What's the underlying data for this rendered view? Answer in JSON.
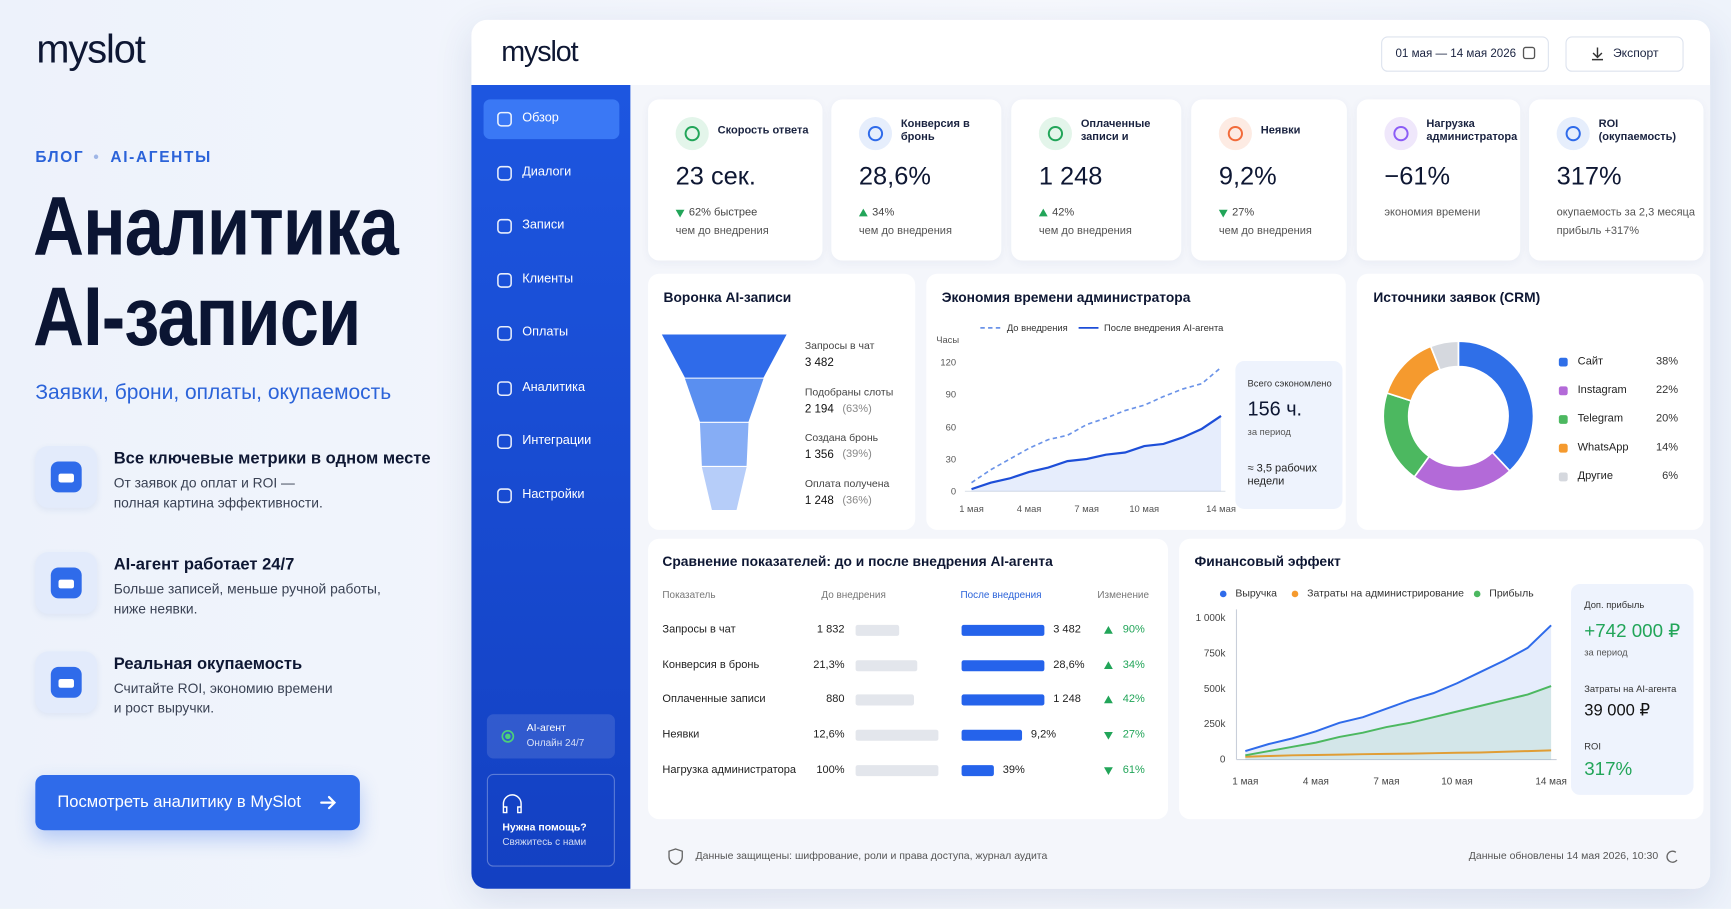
{
  "brand": "myslot",
  "breadcrumb": [
    "БЛОГ",
    "AI-АГЕНТЫ"
  ],
  "hero": {
    "title": [
      "Аналитика",
      "AI-записи"
    ],
    "subtitle": "Заявки, брони, оплаты, окупаемость"
  },
  "features": [
    {
      "title": "Все ключевые метрики в одном месте",
      "text": [
        "От заявок до оплат и ROI —",
        "полная картина эффективности."
      ]
    },
    {
      "title": "AI-агент работает 24/7",
      "text": [
        "Больше записей, меньше ручной работы,",
        "ниже неявки."
      ]
    },
    {
      "title": "Реальная окупаемость",
      "text": [
        "Считайте ROI, экономию времени",
        "и рост выручки."
      ]
    }
  ],
  "cta": "Посмотреть аналитику в MySlot",
  "dashboard": {
    "logo": "myslot",
    "date_range": "01 мая — 14 мая 2026",
    "export": "Экспорт",
    "nav": [
      "Обзор",
      "Диалоги",
      "Записи",
      "Клиенты",
      "Оплаты",
      "Аналитика",
      "Интеграции",
      "Настройки"
    ],
    "agent": {
      "title": "AI-агент",
      "status": "Онлайн 24/7"
    },
    "help": {
      "title": "Нужна помощь?",
      "text": "Свяжитесь с нами"
    },
    "kpis": [
      {
        "label": "Скорость ответа",
        "value": "23 сек.",
        "delta": "62% быстрее",
        "trend": "down",
        "note": "чем до внедрения"
      },
      {
        "label": "Конверсия в бронь",
        "value": "28,6%",
        "delta": "34%",
        "trend": "up",
        "note": "чем до внедрения"
      },
      {
        "label": "Оплаченные записи и",
        "value": "1 248",
        "delta": "42%",
        "trend": "up",
        "note": "чем до внедрения"
      },
      {
        "label": "Неявки",
        "value": "9,2%",
        "delta": "27%",
        "trend": "down",
        "note": "чем до внедрения"
      },
      {
        "label": "Нагрузка администратора",
        "value": "−61%",
        "note": "экономия времени"
      },
      {
        "label": "ROI (окупаемость)",
        "value": "317%",
        "note": "окупаемость за 2,3 месяца",
        "note2": "прибыль +317%"
      }
    ],
    "footer": {
      "security": "Данные защищены: шифрование, роли и права доступа, журнал аудита",
      "updated": "Данные обновлены 14 мая 2026, 10:30"
    }
  },
  "funnel": {
    "type": "funnel",
    "title": "Воронка AI-записи",
    "stages": [
      "Запросы в чат",
      "Подобраны слоты",
      "Создана бронь",
      "Оплата получена"
    ],
    "values": [
      3482,
      2194,
      1356,
      1248
    ],
    "value_labels": [
      "3 482",
      "2 194",
      "1 356",
      "1 248"
    ],
    "shares": [
      null,
      "(63%)",
      "(39%)",
      "(36%)"
    ],
    "colors": [
      "#2f6bea",
      "#5a8ff0",
      "#86adf5",
      "#b6cdf9"
    ]
  },
  "time_chart": {
    "type": "line",
    "title": "Экономия времени администратора",
    "y_label": "Часы",
    "categories": [
      "1 мая",
      null,
      null,
      "4 мая",
      null,
      null,
      "7 мая",
      null,
      null,
      "10 мая",
      null,
      null,
      null,
      "14 мая"
    ],
    "series": [
      {
        "name": "До внедрения",
        "color": "#6b93e8",
        "dash": true,
        "values": [
          8,
          20,
          30,
          40,
          48,
          52,
          62,
          68,
          75,
          80,
          88,
          95,
          100,
          115
        ]
      },
      {
        "name": "После внедрения AI-агента",
        "color": "#1d4ed8",
        "dash": false,
        "values": [
          2,
          8,
          12,
          18,
          22,
          28,
          30,
          34,
          36,
          42,
          44,
          50,
          58,
          70
        ]
      }
    ],
    "ylim": [
      0,
      120
    ],
    "yticks": [
      0,
      30,
      60,
      90,
      120
    ],
    "grid": false,
    "summary": {
      "title": "Всего сэкономлено",
      "value": "156 ч.",
      "period": "за период",
      "equivalent": "≈ 3,5 рабочих недели"
    }
  },
  "sources": {
    "type": "donut",
    "title": "Источники заявок (CRM)",
    "categories": [
      "Сайт",
      "Instagram",
      "Telegram",
      "WhatsApp",
      "Другие"
    ],
    "values": [
      38,
      22,
      20,
      14,
      6
    ],
    "value_labels": [
      "38%",
      "22%",
      "20%",
      "14%",
      "6%"
    ],
    "colors": [
      "#2f6fe8",
      "#b36ad8",
      "#4cb860",
      "#f59a2e",
      "#d5d8de"
    ]
  },
  "comparison": {
    "type": "table",
    "title": "Сравнение показателей: до и после внедрения AI-агента",
    "columns": [
      "Показатель",
      "До внедрения",
      "После внедрения",
      "Изменение"
    ],
    "rows": [
      "Запросы в чат",
      "Конверсия в бронь",
      "Оплаченные записи",
      "Неявки",
      "Нагрузка администратора"
    ],
    "before": [
      1832,
      21.3,
      880,
      12.6,
      100
    ],
    "before_labels": [
      "1 832",
      "21,3%",
      "880",
      "12,6%",
      "100%"
    ],
    "after": [
      3482,
      28.6,
      1248,
      9.2,
      39
    ],
    "after_labels": [
      "3 482",
      "28,6%",
      "1 248",
      "9,2%",
      "39%"
    ],
    "change": [
      "90%",
      "34%",
      "42%",
      "27%",
      "61%"
    ],
    "change_trend": [
      "up",
      "up",
      "up",
      "down",
      "down"
    ]
  },
  "finance": {
    "type": "line",
    "title": "Финансовый эффект",
    "categories": [
      "1 мая",
      null,
      null,
      "4 мая",
      null,
      null,
      "7 мая",
      null,
      null,
      "10 мая",
      null,
      null,
      null,
      "14 мая"
    ],
    "series": [
      {
        "name": "Выручка",
        "color": "#2f6bea",
        "fill": true,
        "values": [
          60000,
          110000,
          150000,
          200000,
          260000,
          300000,
          360000,
          420000,
          470000,
          540000,
          620000,
          700000,
          790000,
          950000
        ]
      },
      {
        "name": "Затраты на администрирование",
        "color": "#f59a2e",
        "fill": false,
        "values": [
          20000,
          25000,
          30000,
          32000,
          35000,
          38000,
          40000,
          42000,
          45000,
          48000,
          50000,
          55000,
          60000,
          65000
        ]
      },
      {
        "name": "Прибыль",
        "color": "#4cb860",
        "fill": true,
        "values": [
          30000,
          60000,
          90000,
          120000,
          160000,
          190000,
          230000,
          260000,
          300000,
          340000,
          380000,
          420000,
          460000,
          520000
        ]
      }
    ],
    "ylim": [
      0,
      1000000
    ],
    "yticks": [
      0,
      {
        "value": 250000,
        "label": "250k"
      },
      {
        "value": 500000,
        "label": "500k"
      },
      {
        "value": 750000,
        "label": "750k"
      },
      {
        "value": 1000000,
        "label": "1 000k"
      }
    ],
    "grid": false,
    "summary": [
      {
        "label": "Доп. прибыль",
        "value": "+742 000 ₽",
        "note": "за период",
        "accent": true
      },
      {
        "label": "Затраты на AI-агента",
        "value": "39 000 ₽",
        "accent": false
      },
      {
        "label": "ROI",
        "value": "317%",
        "accent": true
      }
    ]
  }
}
